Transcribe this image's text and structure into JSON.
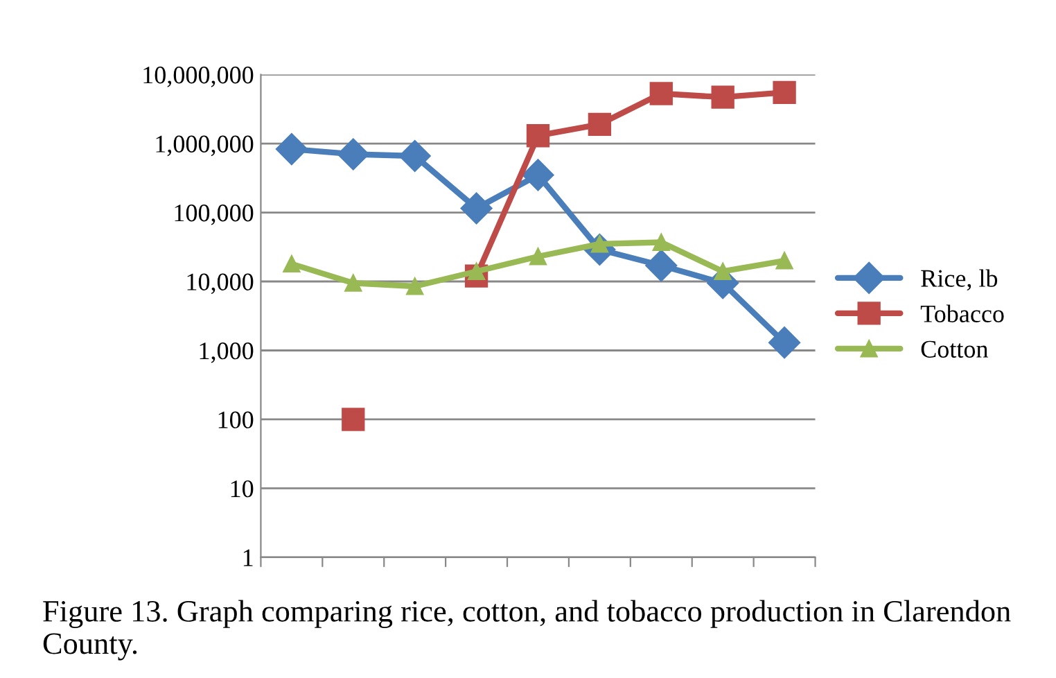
{
  "chart_data": {
    "type": "line",
    "categories": [
      null,
      null,
      null,
      null,
      null,
      null,
      null,
      null,
      null
    ],
    "series": [
      {
        "name": "Rice, lb",
        "color": "#4a7ebb",
        "marker": "diamond",
        "values": [
          830000,
          700000,
          660000,
          115000,
          350000,
          29000,
          17000,
          9500,
          1300
        ]
      },
      {
        "name": "Tobacco",
        "color": "#be4b48",
        "marker": "square",
        "values": [
          null,
          100,
          null,
          12000,
          1300000,
          1900000,
          5300000,
          4700000,
          5500000
        ]
      },
      {
        "name": "Cotton",
        "color": "#98b954",
        "marker": "triangle",
        "values": [
          18000,
          9500,
          8500,
          14000,
          23000,
          35000,
          37000,
          14000,
          20000
        ]
      }
    ],
    "log": true,
    "ylim": [
      1,
      10000000
    ],
    "yticks": [
      {
        "value": 1,
        "label": "1"
      },
      {
        "value": 10,
        "label": "10"
      },
      {
        "value": 100,
        "label": "100"
      },
      {
        "value": 1000,
        "label": "1,000"
      },
      {
        "value": 10000,
        "label": "10,000"
      },
      {
        "value": 100000,
        "label": "100,000"
      },
      {
        "value": 1000000,
        "label": "1,000,000"
      },
      {
        "value": 10000000,
        "label": "10,000,000"
      }
    ],
    "grid": "y",
    "legend": "right",
    "line_style": "solid",
    "annotations": [
      "Figure 13. Graph comparing rice, cotton, and tobacco production in Clarendon County."
    ]
  }
}
